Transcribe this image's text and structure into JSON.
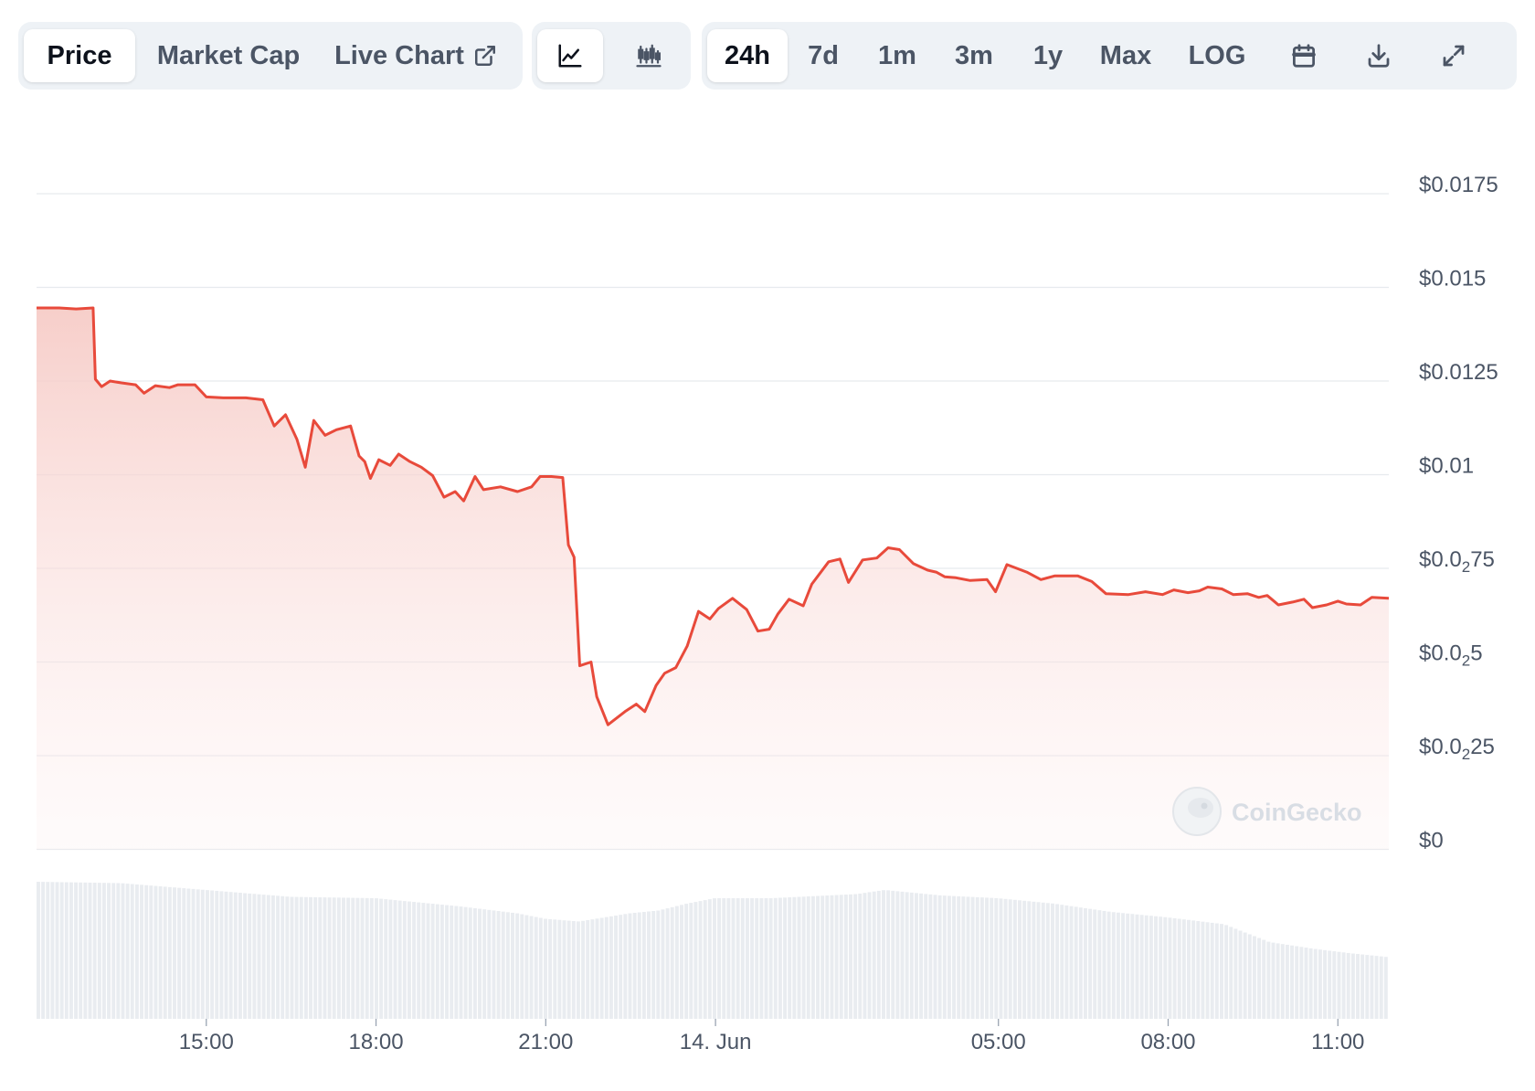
{
  "tabs": {
    "price": "Price",
    "market_cap": "Market Cap",
    "live_chart": "Live Chart"
  },
  "chart_type_buttons": {
    "line": "line-chart-icon",
    "candle": "candlestick-icon"
  },
  "ranges": [
    "24h",
    "7d",
    "1m",
    "3m",
    "1y",
    "Max",
    "LOG"
  ],
  "active_range": "24h",
  "tools": {
    "calendar": "calendar-icon",
    "download": "download-icon",
    "fullscreen": "expand-icon"
  },
  "watermark": "CoinGecko",
  "colors": {
    "line": "#e84a3b",
    "area_top": "#f6c9c4",
    "grid": "#e7eaee",
    "volume": "#e9ecf0",
    "text": "#4b5565"
  },
  "chart_data": {
    "type": "area",
    "title": "",
    "y_tick_labels": [
      {
        "pre": "$0.0175",
        "sub": "",
        "post": ""
      },
      {
        "pre": "$0.015",
        "sub": "",
        "post": ""
      },
      {
        "pre": "$0.0125",
        "sub": "",
        "post": ""
      },
      {
        "pre": "$0.01",
        "sub": "",
        "post": ""
      },
      {
        "pre": "$0.0",
        "sub": "2",
        "post": "75"
      },
      {
        "pre": "$0.0",
        "sub": "2",
        "post": "5"
      },
      {
        "pre": "$0.0",
        "sub": "2",
        "post": "25"
      },
      {
        "pre": "$0",
        "sub": "",
        "post": ""
      }
    ],
    "y_scale_note": "ticks evenly spaced; label index 7 = bottom",
    "x_tick_labels": [
      "15:00",
      "18:00",
      "21:00",
      "14. Jun",
      "05:00",
      "08:00",
      "11:00"
    ],
    "x_tick_hours": [
      3,
      6,
      9,
      12,
      17,
      20,
      23
    ],
    "x_range_hours": [
      0,
      23.9
    ],
    "series": [
      {
        "values_tick_units": [
          [
            0.0,
            5.78
          ],
          [
            0.4,
            5.78
          ],
          [
            0.7,
            5.77
          ],
          [
            1.0,
            5.78
          ],
          [
            1.04,
            5.02
          ],
          [
            1.15,
            4.94
          ],
          [
            1.3,
            5.0
          ],
          [
            1.5,
            4.98
          ],
          [
            1.75,
            4.96
          ],
          [
            1.9,
            4.87
          ],
          [
            2.1,
            4.95
          ],
          [
            2.35,
            4.93
          ],
          [
            2.5,
            4.96
          ],
          [
            2.8,
            4.96
          ],
          [
            3.0,
            4.83
          ],
          [
            3.3,
            4.82
          ],
          [
            3.7,
            4.82
          ],
          [
            4.0,
            4.8
          ],
          [
            4.2,
            4.52
          ],
          [
            4.4,
            4.64
          ],
          [
            4.6,
            4.38
          ],
          [
            4.75,
            4.08
          ],
          [
            4.9,
            4.58
          ],
          [
            5.1,
            4.42
          ],
          [
            5.3,
            4.48
          ],
          [
            5.55,
            4.52
          ],
          [
            5.7,
            4.2
          ],
          [
            5.8,
            4.14
          ],
          [
            5.9,
            3.96
          ],
          [
            6.05,
            4.16
          ],
          [
            6.25,
            4.1
          ],
          [
            6.4,
            4.22
          ],
          [
            6.6,
            4.14
          ],
          [
            6.8,
            4.08
          ],
          [
            7.0,
            3.99
          ],
          [
            7.2,
            3.76
          ],
          [
            7.4,
            3.82
          ],
          [
            7.55,
            3.72
          ],
          [
            7.75,
            3.98
          ],
          [
            7.9,
            3.84
          ],
          [
            8.2,
            3.87
          ],
          [
            8.5,
            3.82
          ],
          [
            8.75,
            3.87
          ],
          [
            8.9,
            3.98
          ],
          [
            9.1,
            3.98
          ],
          [
            9.3,
            3.97
          ],
          [
            9.4,
            3.25
          ],
          [
            9.5,
            3.12
          ],
          [
            9.6,
            1.96
          ],
          [
            9.8,
            2.0
          ],
          [
            9.9,
            1.63
          ],
          [
            10.1,
            1.33
          ],
          [
            10.4,
            1.47
          ],
          [
            10.6,
            1.55
          ],
          [
            10.75,
            1.47
          ],
          [
            10.95,
            1.75
          ],
          [
            11.1,
            1.88
          ],
          [
            11.3,
            1.94
          ],
          [
            11.5,
            2.17
          ],
          [
            11.7,
            2.54
          ],
          [
            11.9,
            2.46
          ],
          [
            12.05,
            2.57
          ],
          [
            12.3,
            2.68
          ],
          [
            12.55,
            2.56
          ],
          [
            12.75,
            2.33
          ],
          [
            12.95,
            2.35
          ],
          [
            13.1,
            2.51
          ],
          [
            13.3,
            2.67
          ],
          [
            13.55,
            2.6
          ],
          [
            13.7,
            2.83
          ],
          [
            14.0,
            3.07
          ],
          [
            14.2,
            3.1
          ],
          [
            14.35,
            2.85
          ],
          [
            14.6,
            3.09
          ],
          [
            14.85,
            3.11
          ],
          [
            15.05,
            3.22
          ],
          [
            15.25,
            3.2
          ],
          [
            15.5,
            3.05
          ],
          [
            15.75,
            2.98
          ],
          [
            15.9,
            2.96
          ],
          [
            16.05,
            2.91
          ],
          [
            16.25,
            2.9
          ],
          [
            16.5,
            2.87
          ],
          [
            16.8,
            2.88
          ],
          [
            16.95,
            2.75
          ],
          [
            17.15,
            3.04
          ],
          [
            17.5,
            2.96
          ],
          [
            17.75,
            2.88
          ],
          [
            18.0,
            2.92
          ],
          [
            18.4,
            2.92
          ],
          [
            18.65,
            2.86
          ],
          [
            18.9,
            2.73
          ],
          [
            19.3,
            2.72
          ],
          [
            19.6,
            2.75
          ],
          [
            19.9,
            2.72
          ],
          [
            20.1,
            2.77
          ],
          [
            20.35,
            2.74
          ],
          [
            20.55,
            2.76
          ],
          [
            20.7,
            2.8
          ],
          [
            20.95,
            2.78
          ],
          [
            21.15,
            2.72
          ],
          [
            21.4,
            2.73
          ],
          [
            21.6,
            2.69
          ],
          [
            21.75,
            2.71
          ],
          [
            21.95,
            2.61
          ],
          [
            22.2,
            2.64
          ],
          [
            22.4,
            2.67
          ],
          [
            22.55,
            2.58
          ],
          [
            22.8,
            2.61
          ],
          [
            23.0,
            2.65
          ],
          [
            23.15,
            2.62
          ],
          [
            23.4,
            2.61
          ],
          [
            23.6,
            2.69
          ],
          [
            23.9,
            2.68
          ]
        ]
      }
    ],
    "volume_relative": [
      [
        0.0,
        1.0
      ],
      [
        1.5,
        0.99
      ],
      [
        3.0,
        0.94
      ],
      [
        4.5,
        0.89
      ],
      [
        6.0,
        0.88
      ],
      [
        7.5,
        0.82
      ],
      [
        8.5,
        0.77
      ],
      [
        9.0,
        0.73
      ],
      [
        9.6,
        0.71
      ],
      [
        10.5,
        0.77
      ],
      [
        11.0,
        0.79
      ],
      [
        11.5,
        0.84
      ],
      [
        12.0,
        0.88
      ],
      [
        13.0,
        0.88
      ],
      [
        14.0,
        0.9
      ],
      [
        14.5,
        0.91
      ],
      [
        15.0,
        0.94
      ],
      [
        16.0,
        0.9
      ],
      [
        17.0,
        0.88
      ],
      [
        18.0,
        0.84
      ],
      [
        19.0,
        0.78
      ],
      [
        20.0,
        0.74
      ],
      [
        21.0,
        0.69
      ],
      [
        21.8,
        0.56
      ],
      [
        22.6,
        0.51
      ],
      [
        23.2,
        0.48
      ],
      [
        23.9,
        0.45
      ]
    ]
  }
}
